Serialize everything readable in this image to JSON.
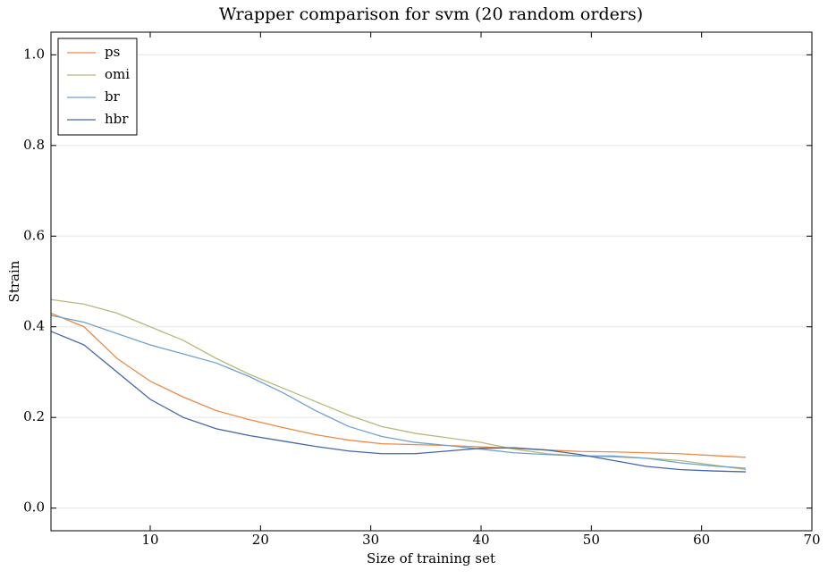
{
  "chart_data": {
    "type": "line",
    "title": "Wrapper comparison for svm (20 random orders)",
    "x_label": "Size of training set",
    "y_label": "Strain",
    "x": [
      1,
      4,
      7,
      10,
      13,
      16,
      19,
      22,
      25,
      28,
      31,
      34,
      37,
      40,
      43,
      46,
      49,
      52,
      55,
      58,
      61,
      64
    ],
    "series": [
      {
        "name": "ps",
        "color": "#ee8a44",
        "values": [
          0.43,
          0.4,
          0.33,
          0.28,
          0.245,
          0.215,
          0.195,
          0.178,
          0.162,
          0.15,
          0.142,
          0.14,
          0.138,
          0.135,
          0.132,
          0.128,
          0.125,
          0.124,
          0.122,
          0.12,
          0.116,
          0.112
        ]
      },
      {
        "name": "omi",
        "color": "#b4bb7a",
        "values": [
          0.46,
          0.45,
          0.43,
          0.4,
          0.37,
          0.33,
          0.295,
          0.265,
          0.235,
          0.205,
          0.18,
          0.165,
          0.155,
          0.145,
          0.13,
          0.12,
          0.115,
          0.113,
          0.11,
          0.105,
          0.095,
          0.085
        ]
      },
      {
        "name": "br",
        "color": "#6ea2cd",
        "values": [
          0.425,
          0.41,
          0.385,
          0.36,
          0.34,
          0.32,
          0.29,
          0.255,
          0.215,
          0.18,
          0.158,
          0.145,
          0.138,
          0.13,
          0.122,
          0.118,
          0.115,
          0.115,
          0.11,
          0.1,
          0.093,
          0.088
        ]
      },
      {
        "name": "hbr",
        "color": "#4466aa",
        "values": [
          0.39,
          0.36,
          0.3,
          0.24,
          0.2,
          0.175,
          0.16,
          0.148,
          0.136,
          0.126,
          0.12,
          0.12,
          0.126,
          0.132,
          0.133,
          0.128,
          0.118,
          0.105,
          0.092,
          0.085,
          0.082,
          0.08
        ]
      }
    ],
    "xlim": [
      1,
      70
    ],
    "xticks": [
      10,
      20,
      30,
      40,
      50,
      60,
      70
    ],
    "ylim": [
      -0.05,
      1.05
    ],
    "yticks": [
      {
        "value": 0,
        "label": "0.0"
      },
      0.2,
      0.4,
      0.6,
      0.8,
      {
        "value": 1,
        "label": "1.0"
      }
    ],
    "grid": true,
    "legend": "upper-left"
  }
}
